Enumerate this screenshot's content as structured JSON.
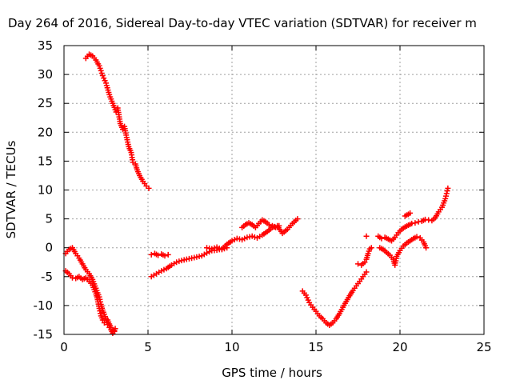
{
  "chart_data": {
    "type": "scatter",
    "title": "Day 264 of 2016, Sidereal Day-to-day VTEC variation (SDTVAR) for receiver m",
    "xlabel": "GPS time / hours",
    "ylabel": "SDTVAR / TECUs",
    "xlim": [
      0,
      25
    ],
    "ylim": [
      -15,
      35
    ],
    "xticks": [
      0,
      5,
      10,
      15,
      20,
      25
    ],
    "yticks": [
      -15,
      -10,
      -5,
      0,
      5,
      10,
      15,
      20,
      25,
      30,
      35
    ],
    "grid": true,
    "marker": "plus",
    "color": "#ff0000",
    "series": [
      {
        "points": [
          [
            1.3,
            32.8
          ],
          [
            1.5,
            33.5
          ],
          [
            1.7,
            33.2
          ],
          [
            1.9,
            32.5
          ],
          [
            2.1,
            31.5
          ],
          [
            2.3,
            29.8
          ],
          [
            2.5,
            28.5
          ],
          [
            2.7,
            26.5
          ],
          [
            2.9,
            25.0
          ],
          [
            3.0,
            24.3
          ],
          [
            3.1,
            23.5
          ],
          [
            3.2,
            24.2
          ],
          [
            3.35,
            21.5
          ],
          [
            3.5,
            20.5
          ],
          [
            3.6,
            21.0
          ],
          [
            3.7,
            19.5
          ],
          [
            3.85,
            17.5
          ],
          [
            4.0,
            16.5
          ],
          [
            4.1,
            14.8
          ],
          [
            4.25,
            14.5
          ],
          [
            4.35,
            13.5
          ],
          [
            4.5,
            12.5
          ],
          [
            4.7,
            11.5
          ],
          [
            4.9,
            10.7
          ],
          [
            5.05,
            10.3
          ]
        ]
      },
      {
        "points": [
          [
            0.1,
            -1.0
          ],
          [
            0.3,
            -0.3
          ],
          [
            0.5,
            0.0
          ],
          [
            0.7,
            -1.0
          ],
          [
            0.9,
            -1.8
          ],
          [
            1.1,
            -2.8
          ],
          [
            1.3,
            -3.8
          ],
          [
            1.5,
            -4.5
          ],
          [
            1.7,
            -5.5
          ],
          [
            1.9,
            -7.0
          ],
          [
            2.0,
            -7.8
          ],
          [
            2.1,
            -8.5
          ],
          [
            2.2,
            -9.8
          ],
          [
            2.3,
            -10.8
          ],
          [
            2.4,
            -11.5
          ],
          [
            2.5,
            -12.3
          ],
          [
            2.6,
            -12.5
          ],
          [
            2.7,
            -13.2
          ],
          [
            2.8,
            -13.8
          ],
          [
            2.9,
            -14.3
          ],
          [
            3.0,
            -14.5
          ],
          [
            3.05,
            -14.0
          ]
        ]
      },
      {
        "points": [
          [
            0.1,
            -4.0
          ],
          [
            0.3,
            -4.5
          ],
          [
            0.5,
            -5.2
          ],
          [
            0.7,
            -5.3
          ],
          [
            0.9,
            -5.0
          ],
          [
            1.1,
            -5.5
          ],
          [
            1.3,
            -5.2
          ],
          [
            1.5,
            -5.8
          ],
          [
            1.7,
            -6.5
          ],
          [
            1.9,
            -8.0
          ],
          [
            2.0,
            -9.0
          ],
          [
            2.1,
            -10.5
          ],
          [
            2.2,
            -11.8
          ],
          [
            2.3,
            -12.5
          ],
          [
            2.4,
            -13.0
          ],
          [
            2.5,
            -12.5
          ],
          [
            2.6,
            -13.3
          ],
          [
            2.7,
            -13.8
          ],
          [
            2.8,
            -14.2
          ],
          [
            2.9,
            -14.8
          ],
          [
            3.0,
            -14.3
          ]
        ]
      },
      {
        "points": [
          [
            5.2,
            -1.2
          ],
          [
            5.4,
            -1.0
          ],
          [
            5.6,
            -1.3
          ],
          [
            5.8,
            -1.1
          ],
          [
            6.0,
            -1.4
          ],
          [
            6.2,
            -1.2
          ]
        ]
      },
      {
        "points": [
          [
            5.2,
            -5.0
          ],
          [
            5.5,
            -4.5
          ],
          [
            5.8,
            -4.0
          ],
          [
            6.1,
            -3.6
          ],
          [
            6.4,
            -3.0
          ],
          [
            6.7,
            -2.5
          ],
          [
            7.0,
            -2.2
          ],
          [
            7.3,
            -2.0
          ],
          [
            7.6,
            -1.8
          ],
          [
            7.9,
            -1.6
          ],
          [
            8.2,
            -1.4
          ],
          [
            8.5,
            -0.9
          ],
          [
            8.8,
            -0.5
          ],
          [
            9.1,
            -0.4
          ],
          [
            9.4,
            -0.2
          ],
          [
            9.7,
            0.6
          ],
          [
            10.0,
            1.2
          ],
          [
            10.3,
            1.6
          ],
          [
            10.6,
            1.4
          ],
          [
            10.9,
            1.8
          ],
          [
            11.2,
            2.0
          ],
          [
            11.5,
            1.7
          ],
          [
            11.8,
            2.2
          ],
          [
            12.1,
            2.8
          ],
          [
            12.4,
            3.5
          ],
          [
            12.7,
            3.8
          ],
          [
            13.0,
            2.5
          ],
          [
            13.3,
            3.2
          ],
          [
            13.6,
            4.2
          ],
          [
            13.9,
            5.0
          ]
        ]
      },
      {
        "points": [
          [
            8.5,
            0.0
          ],
          [
            8.8,
            -0.2
          ],
          [
            9.1,
            0.1
          ],
          [
            9.4,
            -0.3
          ],
          [
            9.7,
            0.0
          ]
        ]
      },
      {
        "points": [
          [
            10.6,
            3.5
          ],
          [
            10.8,
            4.0
          ],
          [
            11.0,
            4.3
          ],
          [
            11.2,
            4.0
          ],
          [
            11.4,
            3.5
          ],
          [
            11.6,
            4.2
          ],
          [
            11.8,
            4.8
          ],
          [
            12.0,
            4.5
          ],
          [
            12.2,
            4.0
          ],
          [
            12.4,
            3.8
          ],
          [
            12.6,
            3.5
          ],
          [
            12.8,
            3.8
          ]
        ]
      },
      {
        "points": [
          [
            14.2,
            -7.5
          ],
          [
            14.4,
            -8.2
          ],
          [
            14.6,
            -9.5
          ],
          [
            14.8,
            -10.3
          ],
          [
            15.0,
            -11.0
          ],
          [
            15.2,
            -11.8
          ],
          [
            15.4,
            -12.3
          ],
          [
            15.6,
            -13.0
          ],
          [
            15.8,
            -13.4
          ],
          [
            16.0,
            -13.0
          ],
          [
            16.2,
            -12.3
          ],
          [
            16.4,
            -11.4
          ],
          [
            16.6,
            -10.3
          ],
          [
            16.8,
            -9.3
          ],
          [
            17.0,
            -8.3
          ],
          [
            17.2,
            -7.4
          ],
          [
            17.4,
            -6.6
          ],
          [
            17.6,
            -5.8
          ],
          [
            17.8,
            -5.0
          ],
          [
            18.0,
            -4.2
          ]
        ]
      },
      {
        "points": [
          [
            17.5,
            -2.8
          ],
          [
            17.7,
            -3.0
          ],
          [
            17.9,
            -2.5
          ],
          [
            18.0,
            -2.0
          ],
          [
            18.1,
            -1.0
          ],
          [
            18.2,
            -0.2
          ],
          [
            18.3,
            0.0
          ]
        ]
      },
      {
        "points": [
          [
            18.0,
            2.0
          ]
        ]
      },
      {
        "points": [
          [
            18.7,
            2.0
          ],
          [
            18.9,
            1.6
          ],
          [
            19.1,
            1.8
          ],
          [
            19.3,
            1.5
          ],
          [
            19.5,
            1.2
          ],
          [
            19.7,
            1.8
          ],
          [
            19.9,
            2.6
          ],
          [
            20.1,
            3.2
          ],
          [
            20.3,
            3.6
          ],
          [
            20.5,
            3.9
          ],
          [
            20.7,
            4.2
          ],
          [
            20.9,
            4.3
          ],
          [
            21.1,
            4.5
          ],
          [
            21.3,
            4.6
          ],
          [
            21.5,
            4.9
          ],
          [
            21.7,
            4.8
          ],
          [
            21.9,
            4.7
          ],
          [
            22.1,
            5.2
          ],
          [
            22.3,
            6.2
          ],
          [
            22.5,
            7.0
          ],
          [
            22.7,
            8.5
          ],
          [
            22.85,
            10.3
          ]
        ]
      },
      {
        "points": [
          [
            20.3,
            5.5
          ],
          [
            20.5,
            5.8
          ],
          [
            20.6,
            6.0
          ]
        ]
      },
      {
        "points": [
          [
            18.8,
            0.0
          ],
          [
            19.0,
            -0.3
          ],
          [
            19.2,
            -0.8
          ],
          [
            19.4,
            -1.3
          ],
          [
            19.6,
            -2.0
          ],
          [
            19.7,
            -3.0
          ],
          [
            19.8,
            -1.5
          ],
          [
            20.0,
            -0.5
          ],
          [
            20.2,
            0.3
          ],
          [
            20.4,
            0.8
          ],
          [
            20.6,
            1.2
          ],
          [
            20.8,
            1.6
          ],
          [
            21.0,
            1.9
          ],
          [
            21.2,
            1.7
          ],
          [
            21.4,
            1.0
          ],
          [
            21.55,
            0.0
          ]
        ]
      }
    ]
  }
}
